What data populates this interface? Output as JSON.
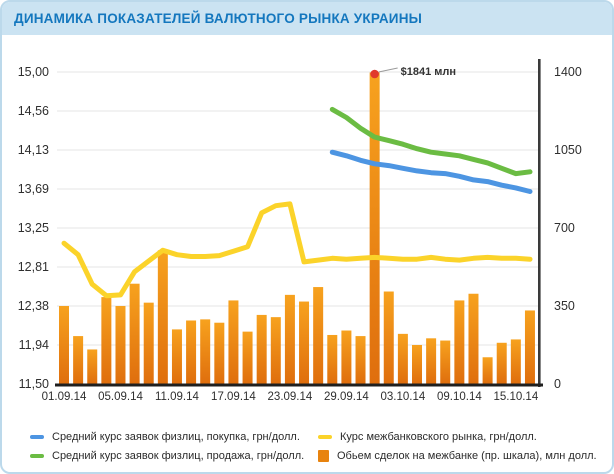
{
  "title": "ДИНАМИКА ПОКАЗАТЕЛЕЙ ВАЛЮТНОГО РЫНКА УКРАИНЫ",
  "colors": {
    "title_bar_bg": "#CBE3F2",
    "title_text": "#1477BE",
    "card_border": "#BCD9EB",
    "bar_top": "#F7A21E",
    "bar_bottom": "#DF6E0D",
    "line_buy": "#4D95E2",
    "line_sell": "#6BBC43",
    "line_interbank": "#FBD32A",
    "annotation_dot": "#E0392D",
    "axis_text": "#2F2F2F",
    "gridline": "#E5E5E5",
    "x_axis_line": "#1F1F1F",
    "right_axis_line": "#3A3A3A"
  },
  "chart_data": {
    "type": "combo (bar + line)",
    "title": "ДИНАМИКА ПОКАЗАТЕЛЕЙ ВАЛЮТНОГО РЫНКА УКРАИНЫ",
    "grid": true,
    "legend_position": "bottom",
    "x_axis": {
      "tick_labels": [
        "01.09.14",
        "05.09.14",
        "11.09.14",
        "17.09.14",
        "23.09.14",
        "29.09.14",
        "03.10.14",
        "09.10.14",
        "15.10.14"
      ],
      "tick_bar_indices": [
        0,
        4,
        8,
        12,
        16,
        20,
        24,
        28,
        32
      ],
      "total_points": 34
    },
    "left_axis": {
      "min": 11.5,
      "max": 15.0,
      "ticks": [
        "15,00",
        "14,56",
        "14,13",
        "13,69",
        "13,25",
        "12,81",
        "12,38",
        "11,94",
        "11,50"
      ]
    },
    "right_axis": {
      "min": 0,
      "max": 1400,
      "ticks": [
        "1400",
        "1050",
        "700",
        "350",
        "0"
      ]
    },
    "series": [
      {
        "id": "volume",
        "name": "Обьем сделок на межбанке (пр. шкала), млн долл.",
        "type": "bar",
        "axis": "right",
        "start_index": 0,
        "values": [
          350,
          215,
          155,
          390,
          350,
          450,
          365,
          600,
          245,
          285,
          290,
          275,
          375,
          235,
          310,
          300,
          400,
          370,
          435,
          220,
          240,
          215,
          1841,
          415,
          225,
          175,
          205,
          195,
          375,
          405,
          120,
          185,
          200,
          330
        ]
      },
      {
        "id": "interbank",
        "name": "Курс межбанковского рынка, грн/долл.",
        "type": "line",
        "axis": "left",
        "color": "#FBD32A",
        "start_index": 0,
        "values": [
          13.08,
          12.95,
          12.62,
          12.49,
          12.5,
          12.76,
          12.88,
          13.0,
          12.95,
          12.93,
          12.93,
          12.94,
          12.99,
          13.04,
          13.42,
          13.5,
          13.52,
          12.87,
          12.89,
          12.91,
          12.9,
          12.91,
          12.92,
          12.91,
          12.9,
          12.9,
          12.92,
          12.9,
          12.89,
          12.91,
          12.92,
          12.91,
          12.91,
          12.9
        ]
      },
      {
        "id": "buy",
        "name": "Средний курс заявок физлиц, покупка, грн/долл.",
        "type": "line",
        "axis": "left",
        "color": "#4D95E2",
        "start_index": 19,
        "values": [
          14.1,
          14.06,
          14.01,
          13.97,
          13.95,
          13.92,
          13.89,
          13.87,
          13.86,
          13.83,
          13.79,
          13.77,
          13.73,
          13.7,
          13.66
        ]
      },
      {
        "id": "sell",
        "name": "Средний курс заявок физлиц, продажа, грн/долл.",
        "type": "line",
        "axis": "left",
        "color": "#6BBC43",
        "start_index": 19,
        "values": [
          14.58,
          14.49,
          14.37,
          14.27,
          14.23,
          14.19,
          14.14,
          14.1,
          14.08,
          14.06,
          14.02,
          13.98,
          13.92,
          13.86,
          13.88
        ]
      }
    ],
    "annotation": {
      "text": "$1841 млн",
      "bar_index": 22,
      "value": 1841
    }
  },
  "legend": {
    "items": [
      {
        "label": "Средний курс заявок физлиц, покупка, грн/долл.",
        "color": "#4D95E2",
        "shape": "line"
      },
      {
        "label": "Средний курс заявок физлиц, продажа, грн/долл.",
        "color": "#6BBC43",
        "shape": "line"
      },
      {
        "label": "Курс межбанковского рынка, грн/долл.",
        "color": "#FBD32A",
        "shape": "line"
      },
      {
        "label": "Обьем сделок на межбанке (пр. шкала), млн долл.",
        "color": "#E8830E",
        "shape": "square"
      }
    ]
  }
}
